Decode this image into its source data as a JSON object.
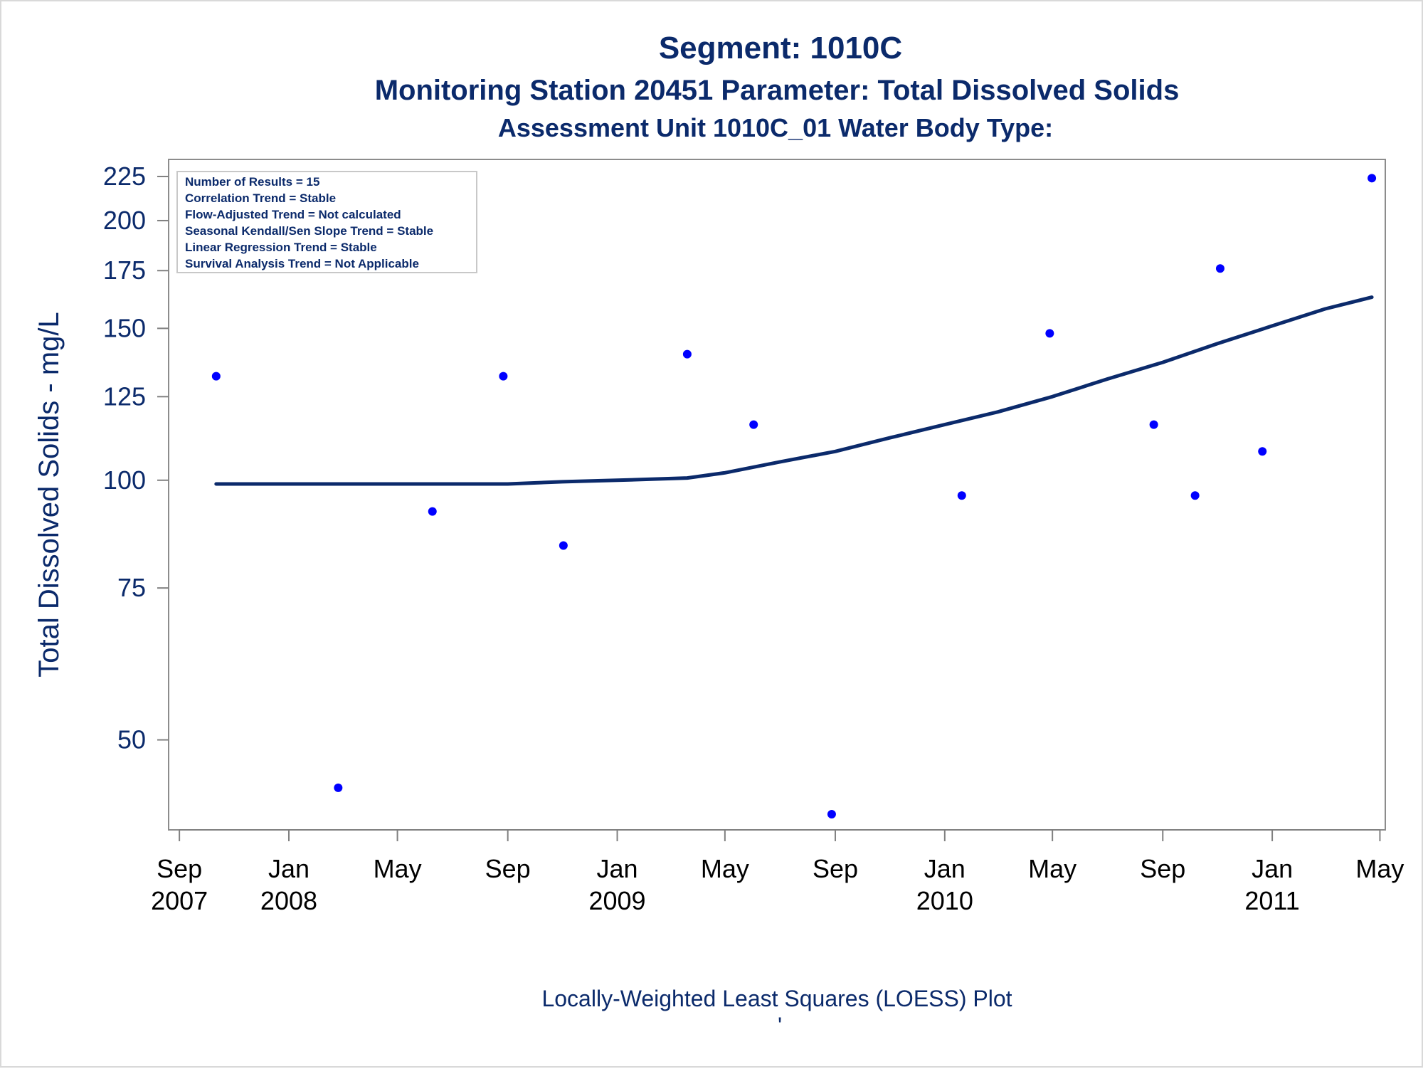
{
  "titles": {
    "line1": "Segment: 1010C",
    "line2": "Monitoring Station 20451 Parameter: Total Dissolved Solids",
    "line3": "Assessment Unit 1010C_01   Water Body Type:"
  },
  "stats_box": [
    "Number of Results = 15",
    "Correlation Trend = Stable",
    "Flow-Adjusted Trend = Not calculated",
    "Seasonal Kendall/Sen Slope Trend = Stable",
    "Linear Regression Trend = Stable",
    "Survival Analysis Trend = Not Applicable"
  ],
  "footnote": "Locally-Weighted Least Squares (LOESS) Plot",
  "footnote_mark": "'",
  "colors": {
    "text": "#0b2a6b",
    "points": "#0000ff",
    "loess_line": "#0b2a6b",
    "axis": "#808080"
  },
  "chart_data": {
    "type": "scatter",
    "xlabel": "",
    "ylabel": "Total Dissolved Solids - mg/L",
    "yscale": "log",
    "ylim": [
      40,
      228
    ],
    "xlim": [
      "2007-08-20",
      "2011-05-07"
    ],
    "yticks": [
      50,
      75,
      100,
      125,
      150,
      175,
      200,
      225
    ],
    "xticks": [
      {
        "date": "2007-09-01",
        "label": [
          "Sep",
          "2007"
        ]
      },
      {
        "date": "2008-01-01",
        "label": [
          "Jan",
          "2008"
        ]
      },
      {
        "date": "2008-05-01",
        "label": [
          "May",
          ""
        ]
      },
      {
        "date": "2008-09-01",
        "label": [
          "Sep",
          ""
        ]
      },
      {
        "date": "2009-01-01",
        "label": [
          "Jan",
          "2009"
        ]
      },
      {
        "date": "2009-05-01",
        "label": [
          "May",
          ""
        ]
      },
      {
        "date": "2009-09-01",
        "label": [
          "Sep",
          ""
        ]
      },
      {
        "date": "2010-01-01",
        "label": [
          "Jan",
          "2010"
        ]
      },
      {
        "date": "2010-05-01",
        "label": [
          "May",
          ""
        ]
      },
      {
        "date": "2010-09-01",
        "label": [
          "Sep",
          ""
        ]
      },
      {
        "date": "2011-01-01",
        "label": [
          "Jan",
          "2011"
        ]
      },
      {
        "date": "2011-05-01",
        "label": [
          "May",
          ""
        ]
      }
    ],
    "series": [
      {
        "type": "scatter",
        "points": [
          {
            "x": "2007-10-12",
            "y": 132
          },
          {
            "x": "2008-02-25",
            "y": 44
          },
          {
            "x": "2008-06-09",
            "y": 92
          },
          {
            "x": "2008-08-27",
            "y": 132
          },
          {
            "x": "2008-11-02",
            "y": 84
          },
          {
            "x": "2009-03-20",
            "y": 140
          },
          {
            "x": "2009-06-02",
            "y": 116
          },
          {
            "x": "2009-08-28",
            "y": 41
          },
          {
            "x": "2010-01-20",
            "y": 96
          },
          {
            "x": "2010-04-28",
            "y": 148
          },
          {
            "x": "2010-08-22",
            "y": 116
          },
          {
            "x": "2010-10-07",
            "y": 96
          },
          {
            "x": "2010-11-04",
            "y": 176
          },
          {
            "x": "2010-12-21",
            "y": 108
          },
          {
            "x": "2011-04-22",
            "y": 224
          }
        ]
      },
      {
        "type": "line",
        "points": [
          {
            "x": "2007-10-12",
            "y": 99
          },
          {
            "x": "2008-01-01",
            "y": 99
          },
          {
            "x": "2008-06-01",
            "y": 99
          },
          {
            "x": "2008-09-01",
            "y": 99
          },
          {
            "x": "2008-11-01",
            "y": 99.6
          },
          {
            "x": "2009-01-01",
            "y": 100
          },
          {
            "x": "2009-03-20",
            "y": 100.6
          },
          {
            "x": "2009-05-01",
            "y": 102
          },
          {
            "x": "2009-07-01",
            "y": 105
          },
          {
            "x": "2009-09-01",
            "y": 108
          },
          {
            "x": "2009-11-01",
            "y": 112
          },
          {
            "x": "2010-01-01",
            "y": 116
          },
          {
            "x": "2010-03-01",
            "y": 120
          },
          {
            "x": "2010-05-01",
            "y": 125
          },
          {
            "x": "2010-07-01",
            "y": 131
          },
          {
            "x": "2010-09-01",
            "y": 137
          },
          {
            "x": "2010-11-01",
            "y": 144
          },
          {
            "x": "2011-01-01",
            "y": 151
          },
          {
            "x": "2011-03-01",
            "y": 158
          },
          {
            "x": "2011-04-22",
            "y": 163
          }
        ]
      }
    ]
  }
}
